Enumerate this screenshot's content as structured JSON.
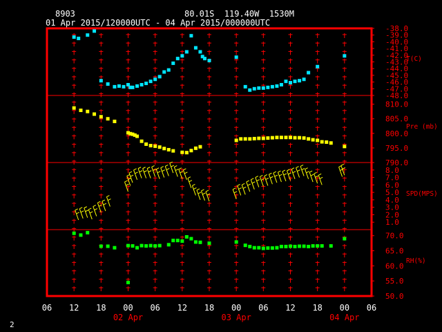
{
  "header": {
    "station": "8903",
    "location": "80.01S  119.40W  1530M",
    "period": "01 Apr 2015/120000UTC - 04 Apr 2015/000000UTC"
  },
  "footer": {
    "page": "2"
  },
  "colors": {
    "frame": "#ff0000",
    "grid": "#ff0000",
    "temperature": "#00e5ff",
    "pressure": "#ffff00",
    "wind": "#ffff00",
    "humidity": "#00ff00",
    "text": "#ffffff",
    "axis_labels": "#ff0000"
  },
  "chart_data": [
    {
      "type": "scatter",
      "panel": "temperature",
      "ylabel": "T(C)",
      "ylim": [
        -48,
        -38
      ],
      "y_ticks": [
        "-38.0",
        "-39.0",
        "-40.0",
        "-41.0",
        "-42.0",
        "-43.0",
        "-44.0",
        "-45.0",
        "-46.0",
        "-47.0",
        "-48.0"
      ],
      "x_hours": [
        12,
        13,
        15,
        16.5,
        18,
        19.5,
        21,
        22,
        23,
        24,
        24.5,
        25,
        26,
        27,
        28,
        29,
        30,
        31,
        32,
        33,
        34,
        35,
        36,
        37,
        38,
        39,
        40,
        40.5,
        41,
        42,
        48,
        50,
        51,
        52,
        53,
        54,
        55,
        56,
        57,
        58,
        59,
        60,
        61,
        62,
        63,
        64,
        66,
        72
      ],
      "values": [
        -39.3,
        -39.5,
        -39.0,
        -38.4,
        -45.8,
        -46.3,
        -46.7,
        -46.6,
        -46.7,
        -46.4,
        -46.8,
        -46.8,
        -46.6,
        -46.4,
        -46.2,
        -45.9,
        -45.6,
        -45.2,
        -44.5,
        -44.2,
        -43.2,
        -42.5,
        -42.1,
        -41.5,
        -39.1,
        -40.9,
        -41.5,
        -42.2,
        -42.5,
        -42.8,
        -42.3,
        -46.7,
        -47.2,
        -47.0,
        -46.9,
        -46.9,
        -46.8,
        -46.7,
        -46.6,
        -46.4,
        -45.9,
        -46.1,
        -45.9,
        -45.8,
        -45.6,
        -44.6,
        -43.7,
        -42.1
      ]
    },
    {
      "type": "scatter",
      "panel": "pressure",
      "ylabel": "Pre (mb)",
      "ylim": [
        790,
        813
      ],
      "y_ticks": [
        "810.0",
        "805.0",
        "800.0",
        "795.0",
        "790.0"
      ],
      "x_hours": [
        12,
        13.5,
        15,
        16.5,
        18,
        19.5,
        21,
        24,
        24.5,
        25,
        25.5,
        26,
        27,
        28,
        29,
        30,
        31,
        32,
        33,
        34,
        36,
        37,
        38,
        39,
        40,
        48,
        49,
        50,
        51,
        52,
        53,
        54,
        55,
        56,
        57,
        58,
        59,
        60,
        61,
        62,
        63,
        64,
        65,
        66,
        67,
        68,
        69,
        72
      ],
      "values": [
        808.7,
        807.9,
        807.5,
        806.6,
        805.7,
        805.0,
        804.1,
        800.2,
        799.9,
        799.7,
        799.4,
        799.0,
        797.3,
        796.3,
        795.8,
        795.6,
        795.3,
        794.8,
        794.4,
        794.0,
        793.5,
        793.4,
        794.1,
        794.9,
        795.4,
        797.6,
        798.1,
        798.1,
        798.1,
        798.2,
        798.3,
        798.3,
        798.4,
        798.5,
        798.6,
        798.6,
        798.6,
        798.6,
        798.5,
        798.5,
        798.4,
        798.1,
        797.8,
        797.6,
        797.1,
        797.0,
        796.7,
        795.5
      ]
    },
    {
      "type": "scatter",
      "panel": "wind",
      "ylabel": "SPD(MPS)",
      "ylim": [
        0,
        9
      ],
      "y_ticks": [
        "8.0",
        "7.0",
        "6.0",
        "5.0",
        "4.0",
        "3.0",
        "2.0",
        "1.0"
      ],
      "x_hours": [
        13,
        14,
        15,
        16,
        17,
        18,
        19,
        20,
        24,
        24.5,
        25,
        26,
        27,
        28,
        29,
        30,
        31,
        32,
        33,
        34,
        35,
        36,
        37,
        38,
        39,
        40,
        41,
        42,
        48,
        49,
        50,
        51,
        52,
        53,
        54,
        55,
        56,
        57,
        58,
        59,
        60,
        61,
        62,
        63,
        64,
        65,
        66,
        67,
        71.5,
        72
      ],
      "values": [
        1.3,
        1.5,
        1.6,
        1.4,
        1.8,
        2.3,
        2.5,
        3.1,
        5.1,
        5.9,
        6.3,
        6.7,
        6.9,
        6.9,
        6.9,
        7.1,
        6.8,
        7.0,
        7.2,
        7.6,
        7.1,
        6.8,
        6.7,
        5.6,
        4.6,
        4.0,
        3.9,
        3.8,
        4.1,
        4.6,
        4.7,
        5.1,
        5.4,
        5.7,
        5.8,
        5.9,
        6.1,
        6.3,
        6.4,
        6.5,
        6.6,
        6.8,
        7.0,
        7.2,
        6.8,
        6.4,
        6.2,
        6.0,
        7.1,
        7.3
      ]
    },
    {
      "type": "scatter",
      "panel": "humidity",
      "ylabel": "RH(%)",
      "ylim": [
        50,
        72
      ],
      "y_ticks": [
        "70.0",
        "65.0",
        "60.0",
        "55.0",
        "50.0"
      ],
      "x_hours": [
        12,
        13.5,
        15,
        18,
        19.5,
        21,
        24,
        25,
        26,
        27,
        28,
        29,
        30,
        31,
        33,
        34,
        35,
        36,
        37,
        38,
        39,
        40,
        42,
        48,
        50,
        51,
        52,
        53,
        54,
        55,
        56,
        57,
        58,
        59,
        60,
        61,
        62,
        63,
        64,
        65,
        66,
        67,
        69,
        72,
        24
      ],
      "values": [
        70.8,
        70.2,
        71.0,
        66.5,
        66.5,
        66.0,
        66.7,
        66.6,
        66.0,
        66.7,
        66.6,
        66.7,
        66.6,
        66.7,
        67.0,
        68.4,
        68.4,
        68.2,
        69.6,
        69.0,
        67.9,
        67.8,
        67.5,
        67.9,
        66.8,
        66.4,
        66.0,
        66.0,
        65.8,
        65.9,
        65.9,
        66.0,
        66.4,
        66.4,
        66.5,
        66.4,
        66.5,
        66.5,
        66.4,
        66.6,
        66.6,
        66.6,
        66.6,
        69.0,
        54.5
      ]
    }
  ],
  "x_axis": {
    "tick_labels": [
      "06",
      "12",
      "18",
      "00",
      "06",
      "12",
      "18",
      "00",
      "06",
      "12",
      "18",
      "00",
      "06"
    ],
    "date_labels": [
      {
        "label": "02 Apr",
        "hour": 24
      },
      {
        "label": "03 Apr",
        "hour": 48
      },
      {
        "label": "04 Apr",
        "hour": 72
      }
    ]
  }
}
